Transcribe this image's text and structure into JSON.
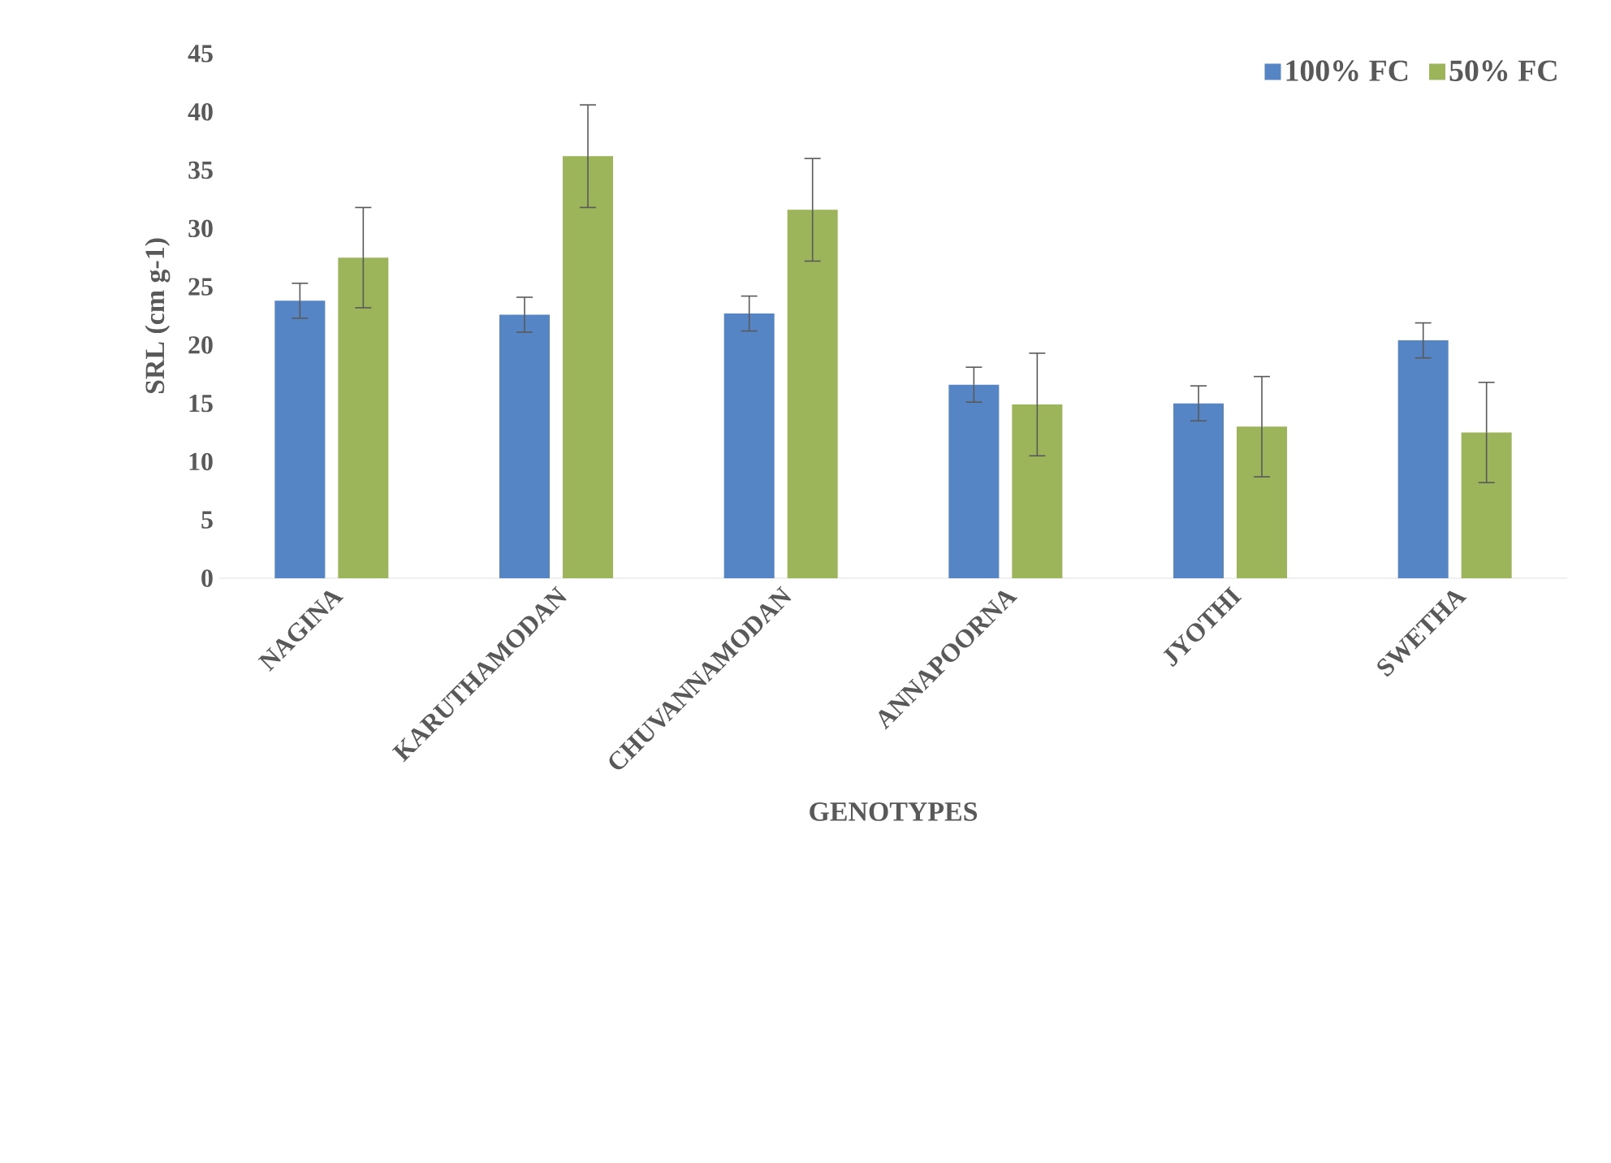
{
  "chart_data": {
    "type": "bar",
    "xlabel": "GENOTYPES",
    "ylabel": "SRL (cm g-1)",
    "categories": [
      "NAGINA",
      "KARUTHAMODAN",
      "CHUVANNAMODAN",
      "ANNAPOORNA",
      "JYOTHI",
      "SWETHA"
    ],
    "series": [
      {
        "name": "100% FC",
        "color": "#5585c5",
        "values": [
          23.8,
          22.6,
          22.7,
          16.6,
          15.0,
          20.4
        ],
        "errors": [
          1.5,
          1.5,
          1.5,
          1.5,
          1.5,
          1.5
        ]
      },
      {
        "name": "50% FC",
        "color": "#9cb55a",
        "values": [
          27.5,
          36.2,
          31.6,
          14.9,
          13.0,
          12.5
        ],
        "errors": [
          4.3,
          4.4,
          4.4,
          4.4,
          4.3,
          4.3
        ]
      }
    ],
    "ylim": [
      0,
      45
    ],
    "yticks": [
      0,
      5,
      10,
      15,
      20,
      25,
      30,
      35,
      40,
      45
    ],
    "grid": false,
    "legend": "top right"
  }
}
